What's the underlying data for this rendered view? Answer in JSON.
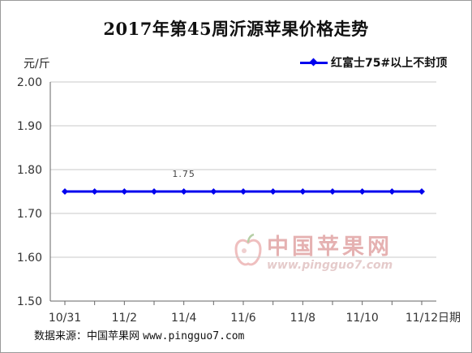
{
  "chart_data": {
    "type": "line",
    "title": "2017年第45周沂源苹果价格走势",
    "ylabel": "元/斤",
    "xlabel": "日期",
    "ylim": [
      1.5,
      2.0
    ],
    "yticks": [
      "2.00",
      "1.90",
      "1.80",
      "1.70",
      "1.60",
      "1.50"
    ],
    "x": [
      "10/31",
      "11/1",
      "11/2",
      "11/3",
      "11/4",
      "11/5",
      "11/6",
      "11/7",
      "11/8",
      "11/9",
      "11/10",
      "11/11",
      "11/12"
    ],
    "xtick_labels": [
      "10/31",
      "11/2",
      "11/4",
      "11/6",
      "11/8",
      "11/10",
      "11/12"
    ],
    "series": [
      {
        "name": "红富士75#以上不封顶",
        "values": [
          1.75,
          1.75,
          1.75,
          1.75,
          1.75,
          1.75,
          1.75,
          1.75,
          1.75,
          1.75,
          1.75,
          1.75,
          1.75
        ],
        "color": "#0000ee"
      }
    ],
    "data_label": "1.75",
    "legend": "top-right",
    "grid": true
  },
  "source": {
    "label": "数据来源：中国苹果网",
    "url": "www.pingguo7.com"
  },
  "watermark": {
    "name": "中国苹果网",
    "url": "www.pingguo7.com"
  }
}
